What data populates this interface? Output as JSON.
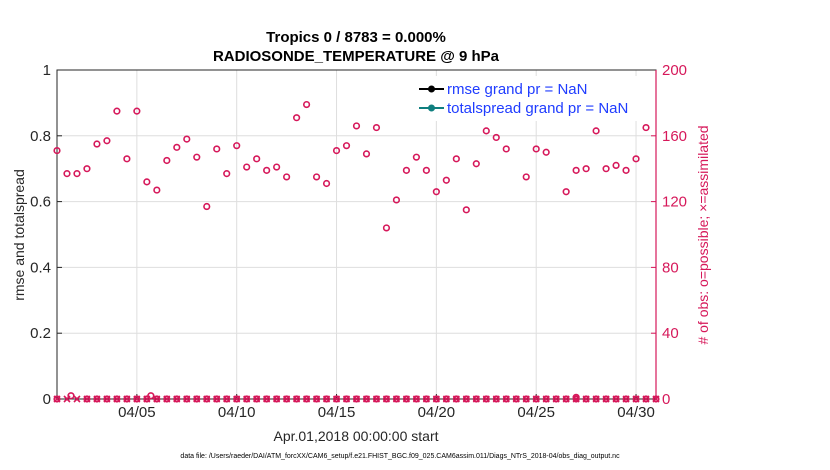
{
  "chart_data": {
    "type": "scatter",
    "title_line1": "Tropics 0 / 8783 = 0.000%",
    "title_line2": "RADIOSONDE_TEMPERATURE @ 9 hPa",
    "xlabel": "Apr.01,2018 00:00:00 start",
    "ylabel_left": "rmse and totalspread",
    "ylabel_right": "# of obs: o=possible; ×=assimilated",
    "footnote": "data file: /Users/raeder/DAI/ATM_forcXX/CAM6_setup/f.e21.FHIST_BGC.f09_025.CAM6assim.011/Diags_NTrS_2018-04/obs_diag_output.nc",
    "xlim": [
      1,
      31
    ],
    "x_ticks": [
      {
        "value": 5,
        "label": "04/05"
      },
      {
        "value": 10,
        "label": "04/10"
      },
      {
        "value": 15,
        "label": "04/15"
      },
      {
        "value": 20,
        "label": "04/20"
      },
      {
        "value": 25,
        "label": "04/25"
      },
      {
        "value": 30,
        "label": "04/30"
      }
    ],
    "ylim_left": [
      0,
      1
    ],
    "y_ticks_left": [
      "0",
      "0.2",
      "0.4",
      "0.6",
      "0.8",
      "1"
    ],
    "ylim_right": [
      0,
      200
    ],
    "y_ticks_right": [
      "0",
      "40",
      "80",
      "120",
      "160",
      "200"
    ],
    "legend": [
      {
        "label": "rmse grand pr = NaN",
        "color": "#000000"
      },
      {
        "label": "totalspread grand pr = NaN",
        "color": "#0f7f7f"
      }
    ],
    "colors": {
      "obs": "#d6185a",
      "rmse": "#000000",
      "totalspread": "#0f7f7f",
      "legend_text": "#1f3cff"
    },
    "possible_obs": {
      "x": [
        1,
        1.5,
        2,
        2.5,
        3,
        3.5,
        4,
        4.5,
        5,
        5.5,
        6,
        6.5,
        7,
        7.5,
        8,
        8.5,
        9,
        9.5,
        10,
        10.5,
        11,
        11.5,
        12,
        12.5,
        13,
        13.5,
        14,
        14.5,
        15,
        15.5,
        16,
        16.5,
        17,
        17.5,
        18,
        18.5,
        19,
        19.5,
        20,
        20.5,
        21,
        21.5,
        22,
        22.5,
        23,
        23.5,
        24,
        24.5,
        25,
        25.5,
        26,
        26.5,
        27,
        27.5,
        28,
        28.5,
        29,
        29.5,
        30,
        30.5,
        31
      ],
      "values": [
        151,
        137,
        137,
        140,
        155,
        157,
        175,
        146,
        175,
        132,
        127,
        145,
        153,
        158,
        147,
        117,
        152,
        137,
        154,
        141,
        146,
        139,
        141,
        135,
        171,
        179,
        135,
        131,
        151,
        154,
        166,
        149,
        165,
        104,
        121,
        139,
        147,
        139,
        126,
        133,
        146,
        115,
        143,
        163,
        159,
        152,
        174,
        135,
        152,
        150,
        174,
        126,
        139,
        140,
        163,
        140,
        142,
        139,
        146,
        165,
        0
      ],
      "near_zero_x": [
        1,
        2.5,
        3,
        3.5,
        4,
        4.5,
        5,
        5.5,
        6,
        6.5,
        7,
        7.5,
        8,
        8.5,
        9,
        9.5,
        10,
        10.5,
        11,
        11.5,
        12,
        12.5,
        13,
        13.5,
        14,
        14.5,
        15,
        15.5,
        16,
        16.5,
        17,
        17.5,
        18,
        18.5,
        19,
        19.5,
        20,
        20.5,
        21,
        21.5,
        22,
        22.5,
        23,
        23.5,
        24,
        24.5,
        25,
        25.5,
        26,
        26.5,
        27,
        27.5,
        28,
        28.5,
        29,
        29.5,
        30,
        30.5,
        31
      ],
      "near_zero_values": [
        0,
        0,
        0,
        0,
        0,
        0,
        0,
        0,
        0,
        0,
        0,
        0,
        0,
        0,
        0,
        0,
        0,
        0,
        0,
        0,
        0,
        0,
        0,
        0,
        0,
        0,
        0,
        0,
        0,
        0,
        0,
        0,
        0,
        0,
        0,
        0,
        0,
        0,
        0,
        0,
        0,
        0,
        0,
        0,
        0,
        0,
        0,
        0,
        0,
        0,
        0,
        0,
        0,
        0,
        0,
        0,
        0,
        0,
        0
      ],
      "raised_x": [
        1.7,
        5.7,
        27
      ],
      "raised_values": [
        2,
        2,
        1
      ]
    },
    "assimilated_obs": {
      "x": [
        1,
        1.5,
        2,
        2.5,
        3,
        3.5,
        4,
        4.5,
        5,
        5.5,
        6,
        6.5,
        7,
        7.5,
        8,
        8.5,
        9,
        9.5,
        10,
        10.5,
        11,
        11.5,
        12,
        12.5,
        13,
        13.5,
        14,
        14.5,
        15,
        15.5,
        16,
        16.5,
        17,
        17.5,
        18,
        18.5,
        19,
        19.5,
        20,
        20.5,
        21,
        21.5,
        22,
        22.5,
        23,
        23.5,
        24,
        24.5,
        25,
        25.5,
        26,
        26.5,
        27,
        27.5,
        28,
        28.5,
        29,
        29.5,
        30,
        30.5,
        31
      ],
      "values": [
        0,
        0,
        0,
        0,
        0,
        0,
        0,
        0,
        0,
        0,
        0,
        0,
        0,
        0,
        0,
        0,
        0,
        0,
        0,
        0,
        0,
        0,
        0,
        0,
        0,
        0,
        0,
        0,
        0,
        0,
        0,
        0,
        0,
        0,
        0,
        0,
        0,
        0,
        0,
        0,
        0,
        0,
        0,
        0,
        0,
        0,
        0,
        0,
        0,
        0,
        0,
        0,
        0,
        0,
        0,
        0,
        0,
        0,
        0,
        0,
        0
      ]
    }
  }
}
